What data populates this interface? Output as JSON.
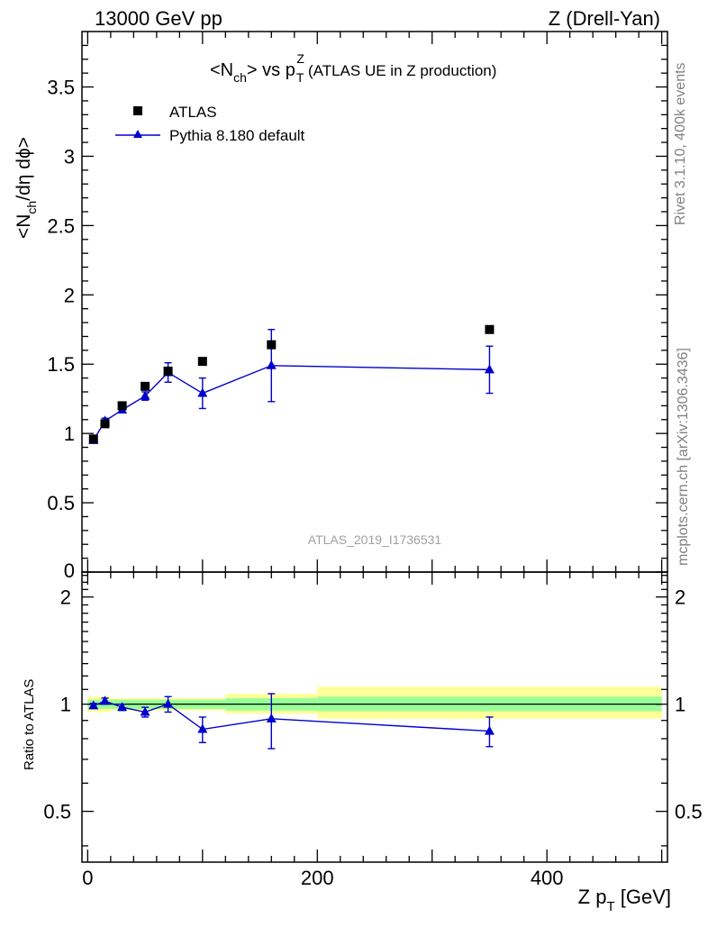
{
  "header": {
    "left": "13000 GeV pp",
    "right": "Z (Drell-Yan)"
  },
  "side_labels": {
    "rivet": "Rivet 3.1.10,  400k events",
    "source": "mcplots.cern.ch [arXiv:1306.3436]"
  },
  "watermark": "ATLAS_2019_I1736531",
  "chart_data": [
    {
      "type": "scatter",
      "panel": "main",
      "title": {
        "prefix": "<N",
        "prefix_sub": "ch",
        "mid": "> vs p",
        "var_sub": "T",
        "var_sup": "Z",
        "suffix": "(ATLAS UE in Z production)"
      },
      "ylabel": {
        "a": "<N",
        "a_sub": "ch",
        "b": "/dη dϕ>"
      },
      "xlim": [
        -5,
        505
      ],
      "ylim": [
        0,
        3.9
      ],
      "yticks": [
        0,
        0.5,
        1,
        1.5,
        2,
        2.5,
        3,
        3.5
      ],
      "ytick_labels": [
        "0",
        "0.5",
        "1",
        "1.5",
        "2",
        "2.5",
        "3",
        "3.5"
      ],
      "legend": {
        "position": "top-left",
        "entries": [
          "ATLAS",
          "Pythia 8.180 default"
        ]
      },
      "series": [
        {
          "name": "ATLAS",
          "marker": "square",
          "color": "#000000",
          "x": [
            5,
            15,
            30,
            50,
            70,
            100,
            160,
            350
          ],
          "y": [
            0.96,
            1.07,
            1.2,
            1.34,
            1.45,
            1.52,
            1.64,
            1.75
          ]
        },
        {
          "name": "Pythia 8.180 default",
          "marker": "triangle",
          "color": "#0000cc",
          "x": [
            5,
            15,
            30,
            50,
            70,
            100,
            160,
            350
          ],
          "y": [
            0.95,
            1.09,
            1.17,
            1.27,
            1.44,
            1.29,
            1.49,
            1.46
          ],
          "err": [
            0.015,
            0.02,
            0.02,
            0.03,
            0.07,
            0.11,
            0.26,
            0.17
          ]
        }
      ]
    },
    {
      "type": "scatter",
      "panel": "ratio",
      "ylabel": "Ratio to ATLAS",
      "xlabel": {
        "a": "Z p",
        "a_sub": "T",
        "b": " [GeV]"
      },
      "xlim": [
        -5,
        505
      ],
      "ylim": [
        0.36,
        2.35
      ],
      "yscale": "log",
      "yticks": [
        0.5,
        1,
        2
      ],
      "ytick_labels": [
        "0.5",
        "1",
        "2"
      ],
      "xticks": [
        0,
        200,
        400
      ],
      "xtick_labels": [
        "0",
        "200",
        "400"
      ],
      "bands": {
        "edges": [
          0,
          10,
          20,
          40,
          60,
          80,
          120,
          200,
          500
        ],
        "yellow_lo": [
          0.95,
          0.95,
          0.96,
          0.96,
          0.96,
          0.96,
          0.94,
          0.91
        ],
        "yellow_hi": [
          1.05,
          1.05,
          1.04,
          1.04,
          1.04,
          1.04,
          1.07,
          1.12
        ],
        "green_lo": [
          0.97,
          0.97,
          0.97,
          0.97,
          0.97,
          0.97,
          0.96,
          0.955
        ],
        "green_hi": [
          1.03,
          1.03,
          1.03,
          1.03,
          1.03,
          1.03,
          1.04,
          1.05
        ],
        "yellow_color": "#ffff99",
        "green_color": "#99ff99"
      },
      "series": [
        {
          "name": "Pythia 8.180 default",
          "marker": "triangle",
          "color": "#0000cc",
          "x": [
            5,
            15,
            30,
            50,
            70,
            100,
            160,
            350
          ],
          "y": [
            0.99,
            1.02,
            0.98,
            0.95,
            1.0,
            0.85,
            0.91,
            0.84
          ],
          "err": [
            0.015,
            0.02,
            0.02,
            0.03,
            0.05,
            0.07,
            0.16,
            0.08
          ]
        }
      ]
    }
  ]
}
